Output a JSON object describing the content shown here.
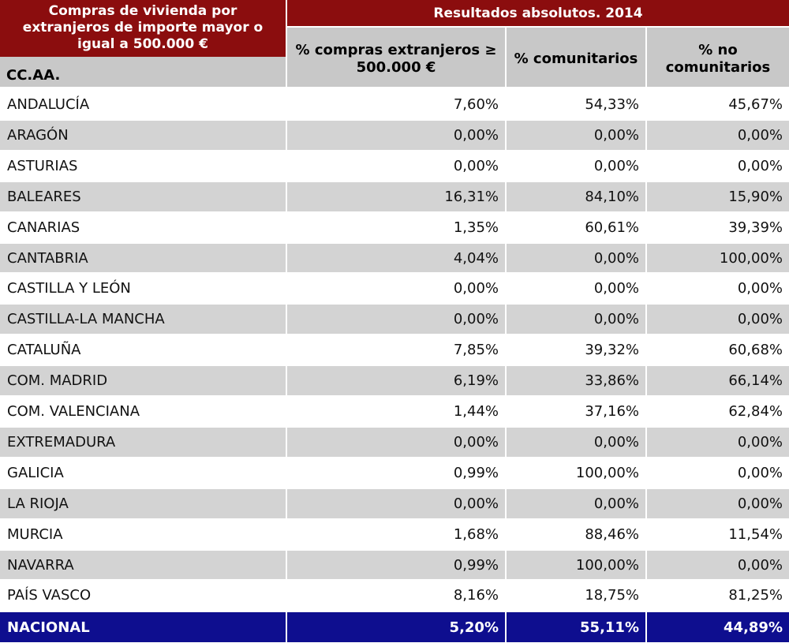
{
  "table": {
    "title": "Compras de vivienda por extranjeros de importe mayor o igual a 500.000 €",
    "group_header": "Resultados absolutos. 2014",
    "region_header": "CC.AA.",
    "columns": [
      "% compras extranjeros ≥ 500.000 €",
      "% comunitarios",
      "% no comunitarios"
    ],
    "rows": [
      {
        "region": "ANDALUCÍA",
        "values": [
          "7,60%",
          "54,33%",
          "45,67%"
        ]
      },
      {
        "region": "ARAGÓN",
        "values": [
          "0,00%",
          "0,00%",
          "0,00%"
        ]
      },
      {
        "region": "ASTURIAS",
        "values": [
          "0,00%",
          "0,00%",
          "0,00%"
        ]
      },
      {
        "region": "BALEARES",
        "values": [
          "16,31%",
          "84,10%",
          "15,90%"
        ]
      },
      {
        "region": "CANARIAS",
        "values": [
          "1,35%",
          "60,61%",
          "39,39%"
        ]
      },
      {
        "region": "CANTABRIA",
        "values": [
          "4,04%",
          "0,00%",
          "100,00%"
        ]
      },
      {
        "region": "CASTILLA Y LEÓN",
        "values": [
          "0,00%",
          "0,00%",
          "0,00%"
        ]
      },
      {
        "region": "CASTILLA-LA MANCHA",
        "values": [
          "0,00%",
          "0,00%",
          "0,00%"
        ]
      },
      {
        "region": "CATALUÑA",
        "values": [
          "7,85%",
          "39,32%",
          "60,68%"
        ]
      },
      {
        "region": "COM. MADRID",
        "values": [
          "6,19%",
          "33,86%",
          "66,14%"
        ]
      },
      {
        "region": "COM. VALENCIANA",
        "values": [
          "1,44%",
          "37,16%",
          "62,84%"
        ]
      },
      {
        "region": "EXTREMADURA",
        "values": [
          "0,00%",
          "0,00%",
          "0,00%"
        ]
      },
      {
        "region": "GALICIA",
        "values": [
          "0,99%",
          "100,00%",
          "0,00%"
        ]
      },
      {
        "region": "LA RIOJA",
        "values": [
          "0,00%",
          "0,00%",
          "0,00%"
        ]
      },
      {
        "region": "MURCIA",
        "values": [
          "1,68%",
          "88,46%",
          "11,54%"
        ]
      },
      {
        "region": "NAVARRA",
        "values": [
          "0,99%",
          "100,00%",
          "0,00%"
        ]
      },
      {
        "region": "PAÍS VASCO",
        "values": [
          "8,16%",
          "18,75%",
          "81,25%"
        ]
      }
    ],
    "total": {
      "region": "NACIONAL",
      "values": [
        "5,20%",
        "55,11%",
        "44,89%"
      ]
    },
    "colors": {
      "header_dark": "#8b0d0e",
      "header_light": "#c8c8c8",
      "stripe": "#d3d3d3",
      "total": "#0e0e8f"
    }
  },
  "chart_data": {
    "type": "table",
    "title": "Compras de vivienda por extranjeros de importe mayor o igual a 500.000 €",
    "subtitle": "Resultados absolutos. 2014",
    "columns": [
      "CC.AA.",
      "% compras extranjeros ≥ 500.000 €",
      "% comunitarios",
      "% no comunitarios"
    ],
    "rows": [
      [
        "ANDALUCÍA",
        7.6,
        54.33,
        45.67
      ],
      [
        "ARAGÓN",
        0.0,
        0.0,
        0.0
      ],
      [
        "ASTURIAS",
        0.0,
        0.0,
        0.0
      ],
      [
        "BALEARES",
        16.31,
        84.1,
        15.9
      ],
      [
        "CANARIAS",
        1.35,
        60.61,
        39.39
      ],
      [
        "CANTABRIA",
        4.04,
        0.0,
        100.0
      ],
      [
        "CASTILLA Y LEÓN",
        0.0,
        0.0,
        0.0
      ],
      [
        "CASTILLA-LA MANCHA",
        0.0,
        0.0,
        0.0
      ],
      [
        "CATALUÑA",
        7.85,
        39.32,
        60.68
      ],
      [
        "COM. MADRID",
        6.19,
        33.86,
        66.14
      ],
      [
        "COM. VALENCIANA",
        1.44,
        37.16,
        62.84
      ],
      [
        "EXTREMADURA",
        0.0,
        0.0,
        0.0
      ],
      [
        "GALICIA",
        0.99,
        100.0,
        0.0
      ],
      [
        "LA RIOJA",
        0.0,
        0.0,
        0.0
      ],
      [
        "MURCIA",
        1.68,
        88.46,
        11.54
      ],
      [
        "NAVARRA",
        0.99,
        100.0,
        0.0
      ],
      [
        "PAÍS VASCO",
        8.16,
        18.75,
        81.25
      ],
      [
        "NACIONAL",
        5.2,
        55.11,
        44.89
      ]
    ]
  }
}
